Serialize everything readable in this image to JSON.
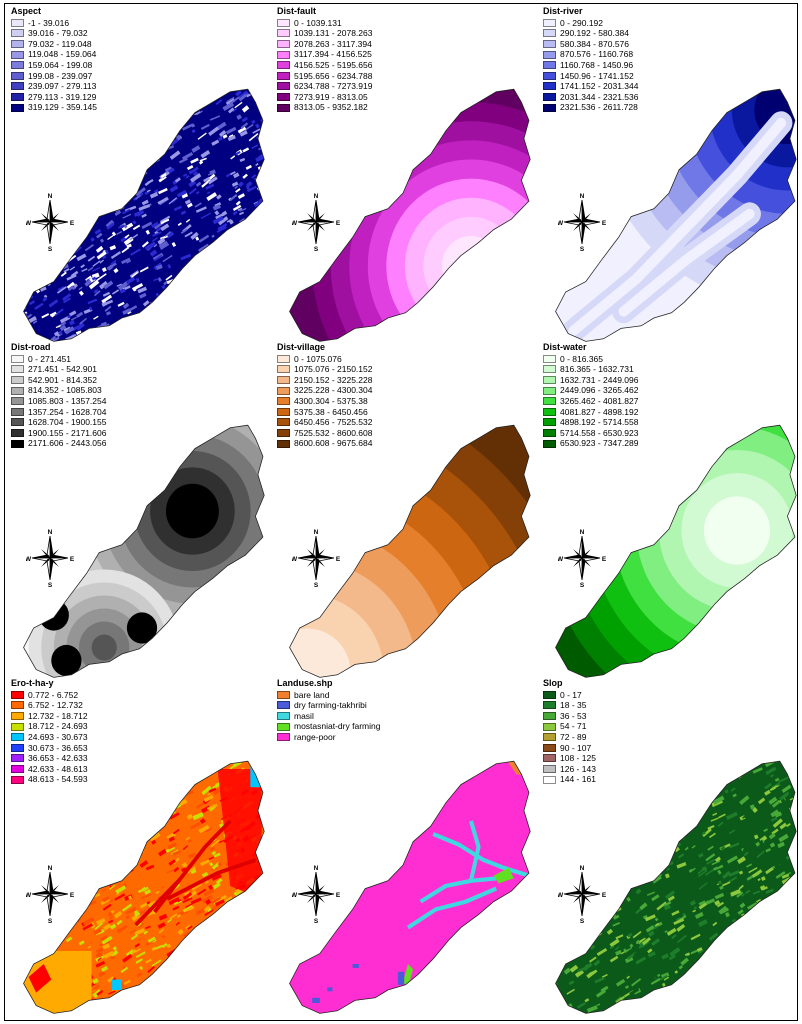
{
  "panels": [
    {
      "id": "aspect",
      "title": "Aspect",
      "legend": [
        {
          "label": "-1 - 39.016",
          "color": "#e8e8f8"
        },
        {
          "label": "39.016 - 79.032",
          "color": "#cfcff2"
        },
        {
          "label": "79.032 - 119.048",
          "color": "#b4b4ec"
        },
        {
          "label": "119.048 - 159.064",
          "color": "#9898e6"
        },
        {
          "label": "159.064 - 199.08",
          "color": "#7c7cdc"
        },
        {
          "label": "199.08 - 239.097",
          "color": "#5f5fd0"
        },
        {
          "label": "239.097 - 279.113",
          "color": "#4040c0"
        },
        {
          "label": "279.113 - 319.129",
          "color": "#2222a8"
        },
        {
          "label": "319.129 - 359.145",
          "color": "#000080"
        }
      ],
      "map_pattern": "noisy",
      "map_colors": [
        "#000080",
        "#2a2ad0",
        "#5f5fd0",
        "#9898e6",
        "#ffffff"
      ]
    },
    {
      "id": "dist-fault",
      "title": "Dist-fault",
      "legend": [
        {
          "label": "0 - 1039.131",
          "color": "#ffe6ff"
        },
        {
          "label": "1039.131 - 2078.263",
          "color": "#ffccff"
        },
        {
          "label": "2078.263 - 3117.394",
          "color": "#ffb3ff"
        },
        {
          "label": "3117.394 - 4156.525",
          "color": "#ff80ff"
        },
        {
          "label": "4156.525 - 5195.656",
          "color": "#e040e0"
        },
        {
          "label": "5195.656 - 6234.788",
          "color": "#c020c0"
        },
        {
          "label": "6234.788 - 7273.919",
          "color": "#a010a0"
        },
        {
          "label": "7273.919 - 8313.05",
          "color": "#800080"
        },
        {
          "label": "8313.05 - 9352.182",
          "color": "#600060"
        }
      ],
      "map_pattern": "bands-fault"
    },
    {
      "id": "dist-river",
      "title": "Dist-river",
      "legend": [
        {
          "label": "0 - 290.192",
          "color": "#f0f0ff"
        },
        {
          "label": "290.192 - 580.384",
          "color": "#d6d8f8"
        },
        {
          "label": "580.384 - 870.576",
          "color": "#b8bcf2"
        },
        {
          "label": "870.576 - 1160.768",
          "color": "#969cec"
        },
        {
          "label": "1160.768 - 1450.96",
          "color": "#6f78e6"
        },
        {
          "label": "1450.96 - 1741.152",
          "color": "#4550dc"
        },
        {
          "label": "1741.152 - 2031.344",
          "color": "#2030c8"
        },
        {
          "label": "2031.344 - 2321.536",
          "color": "#0a18a0"
        },
        {
          "label": "2321.536 - 2611.728",
          "color": "#000070"
        }
      ],
      "map_pattern": "bands-river"
    },
    {
      "id": "dist-road",
      "title": "Dist-road",
      "legend": [
        {
          "label": "0 - 271.451",
          "color": "#f7f7f7"
        },
        {
          "label": "271.451 - 542.901",
          "color": "#e2e2e2"
        },
        {
          "label": "542.901 - 814.352",
          "color": "#cbcbcb"
        },
        {
          "label": "814.352 - 1085.803",
          "color": "#b0b0b0"
        },
        {
          "label": "1085.803 - 1357.254",
          "color": "#959595"
        },
        {
          "label": "1357.254 - 1628.704",
          "color": "#777777"
        },
        {
          "label": "1628.704 - 1900.155",
          "color": "#555555"
        },
        {
          "label": "1900.155 - 2171.606",
          "color": "#303030"
        },
        {
          "label": "2171.606 - 2443.056",
          "color": "#000000"
        }
      ],
      "map_pattern": "bands-road"
    },
    {
      "id": "dist-village",
      "title": "Dist-village",
      "legend": [
        {
          "label": "0 - 1075.076",
          "color": "#fde9d9"
        },
        {
          "label": "1075.076 - 2150.152",
          "color": "#f9d2b0"
        },
        {
          "label": "2150.152 - 3225.228",
          "color": "#f4b98a"
        },
        {
          "label": "3225.228 - 4300.304",
          "color": "#ee9c5c"
        },
        {
          "label": "4300.304 - 5375.38",
          "color": "#e57f2c"
        },
        {
          "label": "5375.38 - 6450.456",
          "color": "#cc6610"
        },
        {
          "label": "6450.456 - 7525.532",
          "color": "#a8520a"
        },
        {
          "label": "7525.532 - 8600.608",
          "color": "#854008"
        },
        {
          "label": "8600.608 - 9675.684",
          "color": "#633005"
        }
      ],
      "map_pattern": "bands-village"
    },
    {
      "id": "dist-water",
      "title": "Dist-water",
      "legend": [
        {
          "label": "0 - 816.365",
          "color": "#f0fff0"
        },
        {
          "label": "816.365 - 1632.731",
          "color": "#d2fad2"
        },
        {
          "label": "1632.731 - 2449.096",
          "color": "#b0f5b0"
        },
        {
          "label": "2449.096 - 3265.462",
          "color": "#80ee80"
        },
        {
          "label": "3265.462 - 4081.827",
          "color": "#40e040"
        },
        {
          "label": "4081.827 - 4898.192",
          "color": "#10c010"
        },
        {
          "label": "4898.192 - 5714.558",
          "color": "#00a000"
        },
        {
          "label": "5714.558 - 6530.923",
          "color": "#008000"
        },
        {
          "label": "6530.923 - 7347.289",
          "color": "#005a00"
        }
      ],
      "map_pattern": "bands-water"
    },
    {
      "id": "ero",
      "title": "Ero-t-ha-y",
      "legend": [
        {
          "label": "0.772 - 6.752",
          "color": "#ff0000"
        },
        {
          "label": "6.752 - 12.732",
          "color": "#ff6a00"
        },
        {
          "label": "12.732 - 18.712",
          "color": "#ffaa00"
        },
        {
          "label": "18.712 - 24.693",
          "color": "#c8e000"
        },
        {
          "label": "24.693 - 30.673",
          "color": "#00c8ff"
        },
        {
          "label": "30.673 - 36.653",
          "color": "#2040ff"
        },
        {
          "label": "36.653 - 42.633",
          "color": "#a020ff"
        },
        {
          "label": "42.633 - 48.613",
          "color": "#e000e0"
        },
        {
          "label": "48.613 - 54.593",
          "color": "#ff0080"
        }
      ],
      "map_pattern": "noisy",
      "map_colors": [
        "#ff6a00",
        "#ff5000",
        "#ffaa00",
        "#ff0000",
        "#c8e000"
      ]
    },
    {
      "id": "landuse",
      "title": "Landuse.shp",
      "legend": [
        {
          "label": "bare land",
          "color": "#f08030"
        },
        {
          "label": "dry farming-takhribi",
          "color": "#4a5ad8"
        },
        {
          "label": "masil",
          "color": "#40d8e0"
        },
        {
          "label": "mostasniat-dry farming",
          "color": "#60e020"
        },
        {
          "label": "range-poor",
          "color": "#ff2ed2"
        }
      ],
      "map_pattern": "landuse"
    },
    {
      "id": "slop",
      "title": "Slop",
      "legend": [
        {
          "label": "0 - 17",
          "color": "#0c5a1a"
        },
        {
          "label": "18 - 35",
          "color": "#1e7d2a"
        },
        {
          "label": "36 - 53",
          "color": "#48a838"
        },
        {
          "label": "54 - 71",
          "color": "#8cc83c"
        },
        {
          "label": "72 - 89",
          "color": "#b4a030"
        },
        {
          "label": "90 - 107",
          "color": "#8c4a18"
        },
        {
          "label": "108 - 125",
          "color": "#a06464"
        },
        {
          "label": "126 - 143",
          "color": "#c0c0c0"
        },
        {
          "label": "144 - 161",
          "color": "#ffffff"
        }
      ],
      "map_pattern": "noisy",
      "map_colors": [
        "#0c5a1a",
        "#1e7d2a",
        "#0c5a1a",
        "#48a838",
        "#8cc83c"
      ]
    }
  ],
  "compass": {
    "n": "N",
    "s": "S",
    "e": "E",
    "w": "W"
  }
}
